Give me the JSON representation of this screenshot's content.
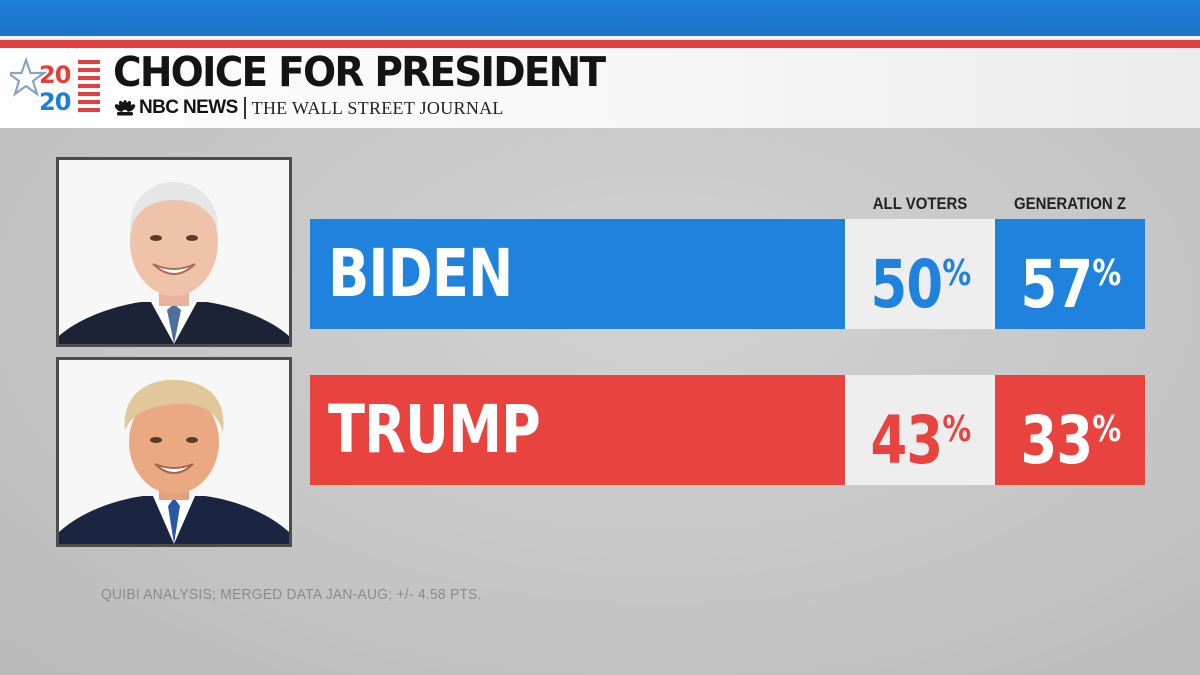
{
  "header": {
    "logo_top": "20",
    "logo_bottom": "20",
    "title": "CHOICE FOR PRESIDENT",
    "source_nbc": "NBC NEWS",
    "source_wsj": "THE WALL STREET JOURNAL"
  },
  "footnote": "QUIBI ANALYSIS; MERGED DATA JAN-AUG; +/- 4.58 PTS.",
  "colors": {
    "blue": "#1f83dd",
    "red": "#e8433f",
    "cell_light": "#eeeeee"
  },
  "chart_data": {
    "type": "table",
    "title": "CHOICE FOR PRESIDENT",
    "columns": [
      "ALL VOTERS",
      "GENERATION Z"
    ],
    "rows": [
      {
        "name": "BIDEN",
        "values": [
          50,
          57
        ],
        "labels": [
          "50",
          "57"
        ],
        "color": "#1f83dd"
      },
      {
        "name": "TRUMP",
        "values": [
          43,
          33
        ],
        "labels": [
          "43",
          "33"
        ],
        "color": "#e8433f"
      }
    ],
    "unit": "%"
  }
}
